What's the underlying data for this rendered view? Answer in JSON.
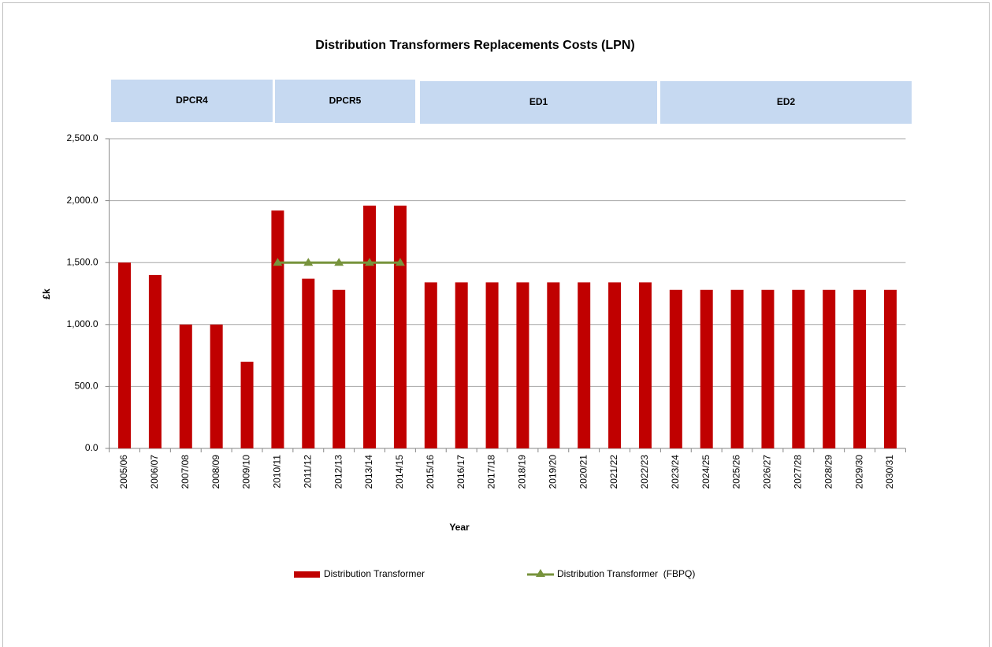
{
  "chart_data": {
    "type": "bar",
    "title": "Distribution Transformers Replacements Costs (LPN)",
    "periods": [
      "DPCR4",
      "DPCR5",
      "ED1",
      "ED2"
    ],
    "x_label": "Year",
    "y_label": "£k",
    "categories": [
      "2005/06",
      "2006/07",
      "2007/08",
      "2008/09",
      "2009/10",
      "2010/11",
      "2011/12",
      "2012/13",
      "2013/14",
      "2014/15",
      "2015/16",
      "2016/17",
      "2017/18",
      "2018/19",
      "2019/20",
      "2020/21",
      "2021/22",
      "2022/23",
      "2023/24",
      "2024/25",
      "2025/26",
      "2026/27",
      "2027/28",
      "2028/29",
      "2029/30",
      "2030/31"
    ],
    "series": [
      {
        "name": "Distribution Transformer",
        "type": "bar",
        "color": "#c00000",
        "values": [
          1500,
          1400,
          1000,
          1000,
          700,
          1920,
          1370,
          1280,
          1960,
          1960,
          1340,
          1340,
          1340,
          1340,
          1340,
          1340,
          1340,
          1340,
          1280,
          1280,
          1280,
          1280,
          1280,
          1280,
          1280,
          1280
        ]
      },
      {
        "name": "Distribution Transformer  (FBPQ)",
        "type": "line",
        "color": "#77933c",
        "values": [
          null,
          null,
          null,
          null,
          null,
          1500,
          1500,
          1500,
          1500,
          1500,
          null,
          null,
          null,
          null,
          null,
          null,
          null,
          null,
          null,
          null,
          null,
          null,
          null,
          null,
          null,
          null
        ]
      }
    ],
    "ylim": [
      0,
      2500
    ],
    "yticks": [
      {
        "value": 0,
        "label": "0.0"
      },
      {
        "value": 500,
        "label": "500.0"
      },
      {
        "value": 1000,
        "label": "1,000.0"
      },
      {
        "value": 1500,
        "label": "1,500.0"
      },
      {
        "value": 2000,
        "label": "2,000.0"
      },
      {
        "value": 2500,
        "label": "2,500.0"
      }
    ],
    "grid": true,
    "legend": "bottom"
  }
}
